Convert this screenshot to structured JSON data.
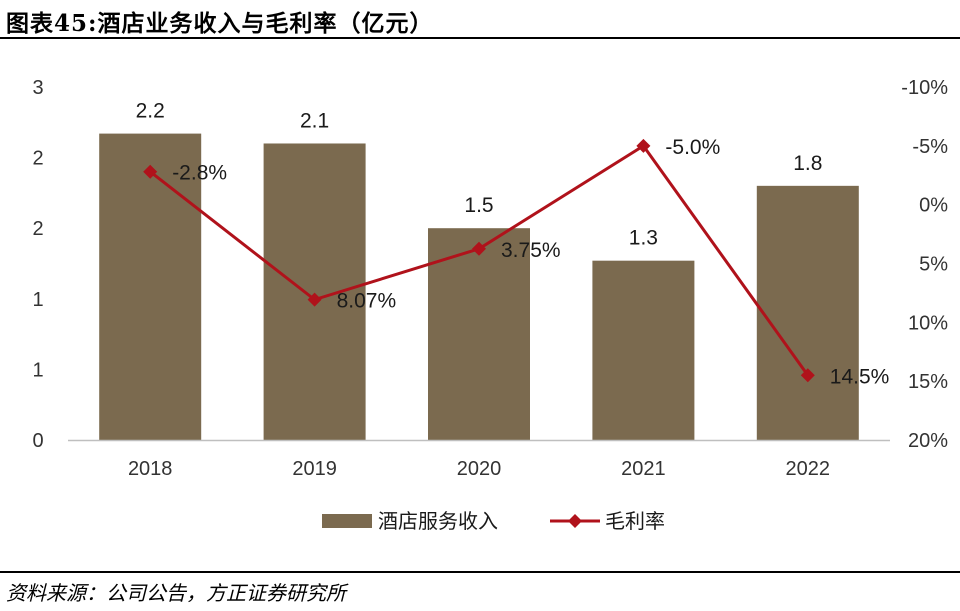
{
  "header": {
    "title": "图表45:酒店业务收入与毛利率（亿元）"
  },
  "footer": {
    "source": "资料来源：公司公告，方正证券研究所"
  },
  "colors": {
    "bar": "#7b6a4f",
    "line": "#b0121b"
  },
  "chart_data": {
    "type": "bar",
    "categories": [
      "2018",
      "2019",
      "2020",
      "2021",
      "2022"
    ],
    "title": "",
    "xlabel": "",
    "ylabel": "",
    "grid": false,
    "legend_position": "bottom",
    "y_left": {
      "ticks": [
        "0",
        "1",
        "1",
        "2",
        "2",
        "3"
      ],
      "ylim": [
        0,
        2.5
      ]
    },
    "y_right": {
      "ticks": [
        "-10%",
        "-5%",
        "0%",
        "5%",
        "10%",
        "15%",
        "20%"
      ],
      "ylim": [
        -10,
        20
      ],
      "inverted": true
    },
    "series": [
      {
        "name": "酒店服务收入",
        "type": "bar",
        "axis": "left",
        "values": [
          2.17,
          2.1,
          1.5,
          1.27,
          1.8
        ],
        "labels": [
          "2.2",
          "2.1",
          "1.5",
          "1.3",
          "1.8"
        ]
      },
      {
        "name": "毛利率",
        "type": "line",
        "axis": "right",
        "values": [
          -2.8,
          8.07,
          3.75,
          -5.0,
          14.5
        ],
        "labels": [
          "-2.8%",
          "8.07%",
          "3.75%",
          "-5.0%",
          "14.5%"
        ]
      }
    ]
  }
}
